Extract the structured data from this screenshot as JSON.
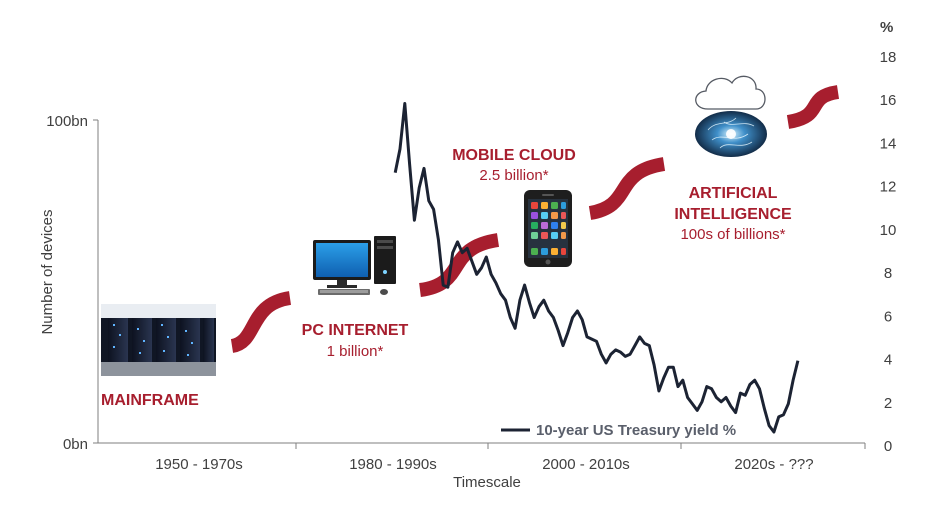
{
  "chart_data": {
    "type": "line",
    "xlabel": "Timescale",
    "ylabel": "Number of devices",
    "y_left_ticks": [
      "100bn",
      "0bn"
    ],
    "y_right_unit": "%",
    "y_right_ticks": [
      "18",
      "16",
      "14",
      "12",
      "10",
      "8",
      "6",
      "4",
      "2",
      "0"
    ],
    "ylim_right": [
      0,
      18
    ],
    "xlim": [
      1950,
      2030
    ],
    "categories": [
      "1950 - 1970s",
      "1980 - 1990s",
      "2000 - 2010s",
      "2020s - ???"
    ],
    "series": [
      {
        "name": "10-year US Treasury yield %",
        "x": [
          1981.0,
          1981.5,
          1982.0,
          1982.5,
          1983.0,
          1983.5,
          1984.0,
          1984.5,
          1985.0,
          1985.5,
          1986.0,
          1986.5,
          1987.0,
          1987.5,
          1988.0,
          1988.5,
          1989.0,
          1989.5,
          1990.0,
          1990.5,
          1991.0,
          1991.5,
          1992.0,
          1992.5,
          1993.0,
          1993.5,
          1994.0,
          1994.5,
          1995.0,
          1995.5,
          1996.0,
          1996.5,
          1997.0,
          1997.5,
          1998.0,
          1998.5,
          1999.0,
          1999.5,
          2000.0,
          2000.5,
          2001.0,
          2001.5,
          2002.0,
          2002.5,
          2003.0,
          2003.5,
          2004.0,
          2004.5,
          2005.0,
          2005.5,
          2006.0,
          2006.5,
          2007.0,
          2007.5,
          2008.0,
          2008.5,
          2009.0,
          2009.5,
          2010.0,
          2010.5,
          2011.0,
          2011.5,
          2012.0,
          2012.5,
          2013.0,
          2013.5,
          2014.0,
          2014.5,
          2015.0,
          2015.5,
          2016.0,
          2016.5,
          2017.0,
          2017.5,
          2018.0,
          2018.5,
          2019.0,
          2019.5,
          2020.0,
          2020.5,
          2021.0,
          2021.5,
          2022.0,
          2022.5,
          2023.0
        ],
        "values": [
          12.6,
          13.7,
          15.8,
          13.0,
          10.4,
          11.9,
          12.8,
          11.3,
          10.9,
          9.5,
          7.4,
          7.3,
          8.9,
          9.4,
          8.9,
          9.1,
          8.5,
          7.9,
          8.2,
          8.7,
          7.9,
          7.5,
          7.0,
          6.7,
          5.9,
          5.4,
          6.7,
          7.4,
          6.6,
          5.9,
          6.4,
          6.7,
          6.2,
          5.9,
          5.3,
          4.6,
          5.2,
          5.9,
          6.2,
          5.8,
          5.0,
          4.9,
          4.8,
          4.2,
          3.8,
          4.2,
          4.4,
          4.3,
          4.1,
          4.2,
          4.6,
          5.0,
          4.7,
          4.6,
          3.7,
          2.5,
          3.1,
          3.6,
          3.6,
          2.7,
          3.0,
          2.2,
          1.9,
          1.6,
          2.0,
          2.7,
          2.6,
          2.2,
          2.0,
          2.2,
          1.8,
          1.5,
          2.4,
          2.3,
          2.8,
          3.0,
          2.6,
          1.7,
          0.9,
          0.6,
          1.3,
          1.4,
          1.9,
          3.0,
          3.9
        ]
      }
    ],
    "legend": "bottom-right",
    "grid": false,
    "annotations": [
      {
        "title": "MAINFRAME",
        "subtitle": ""
      },
      {
        "title": "PC INTERNET",
        "subtitle": "1 billion*"
      },
      {
        "title": "MOBILE CLOUD",
        "subtitle": "2.5 billion*"
      },
      {
        "title_lines": [
          "ARTIFICIAL",
          "INTELLIGENCE"
        ],
        "subtitle": "100s of billions*"
      }
    ]
  },
  "colors": {
    "accent": "#a71e2e",
    "line": "#1c2333",
    "axis": "#7f7f7f",
    "text": "#404040"
  },
  "icons": [
    "server-room-photo",
    "desktop-pc-icon",
    "smartphone-icon",
    "cloud-icon",
    "ai-brain-photo"
  ]
}
